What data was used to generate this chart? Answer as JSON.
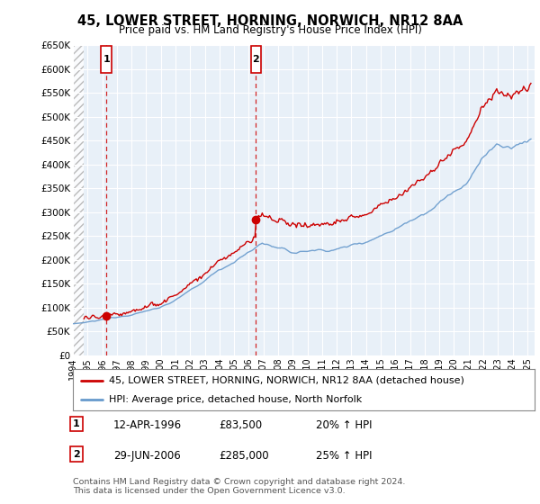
{
  "title": "45, LOWER STREET, HORNING, NORWICH, NR12 8AA",
  "subtitle": "Price paid vs. HM Land Registry's House Price Index (HPI)",
  "ylabel_ticks": [
    "£0",
    "£50K",
    "£100K",
    "£150K",
    "£200K",
    "£250K",
    "£300K",
    "£350K",
    "£400K",
    "£450K",
    "£500K",
    "£550K",
    "£600K",
    "£650K"
  ],
  "ytick_vals": [
    0,
    50000,
    100000,
    150000,
    200000,
    250000,
    300000,
    350000,
    400000,
    450000,
    500000,
    550000,
    600000,
    650000
  ],
  "ylim": [
    0,
    650000
  ],
  "xlim_start": 1994.0,
  "xlim_end": 2025.5,
  "sale1_x": 1996.28,
  "sale1_y": 83500,
  "sale1_label": "1",
  "sale2_x": 2006.49,
  "sale2_y": 285000,
  "sale2_label": "2",
  "legend_line1": "45, LOWER STREET, HORNING, NORWICH, NR12 8AA (detached house)",
  "legend_line2": "HPI: Average price, detached house, North Norfolk",
  "annotation1_date": "12-APR-1996",
  "annotation1_price": "£83,500",
  "annotation1_hpi": "20% ↑ HPI",
  "annotation2_date": "29-JUN-2006",
  "annotation2_price": "£285,000",
  "annotation2_hpi": "25% ↑ HPI",
  "footer": "Contains HM Land Registry data © Crown copyright and database right 2024.\nThis data is licensed under the Open Government Licence v3.0.",
  "line_color_red": "#cc0000",
  "line_color_blue": "#6699cc",
  "background_plot": "#e8f0f8",
  "background_fig": "#ffffff"
}
